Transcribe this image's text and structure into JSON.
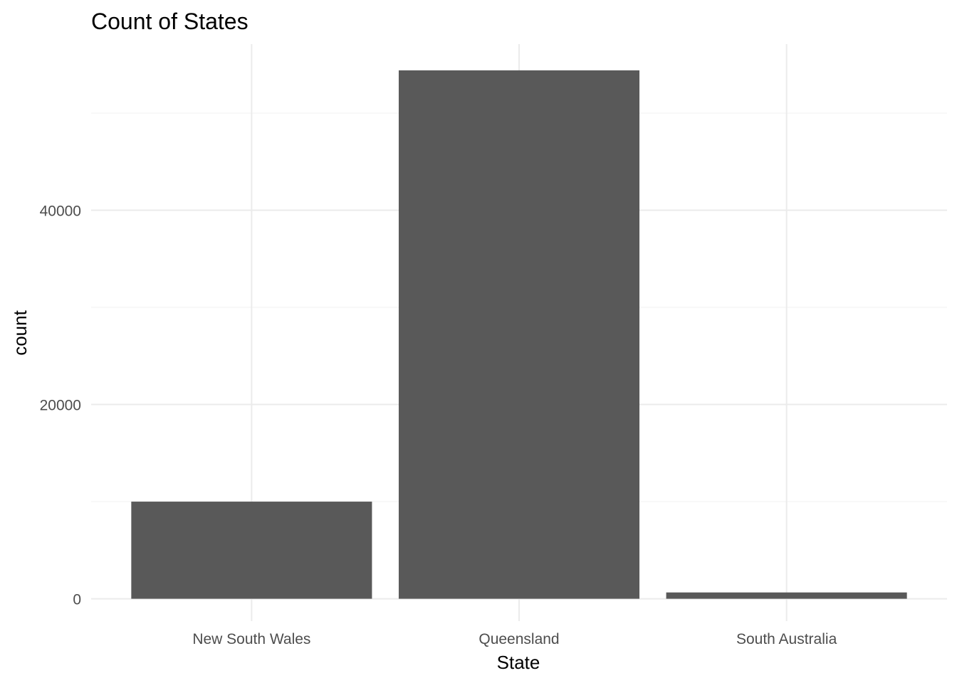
{
  "chart_data": {
    "type": "bar",
    "title": "Count of States",
    "xlabel": "State",
    "ylabel": "count",
    "categories": [
      "New South Wales",
      "Queensland",
      "South Australia"
    ],
    "values": [
      10000,
      54400,
      650
    ],
    "ylim": [
      -2300,
      57100
    ],
    "yticks": [
      0,
      20000,
      40000
    ],
    "yticks_minor": [
      10000,
      30000,
      50000
    ],
    "grid": true,
    "bar_color": "#595959"
  }
}
